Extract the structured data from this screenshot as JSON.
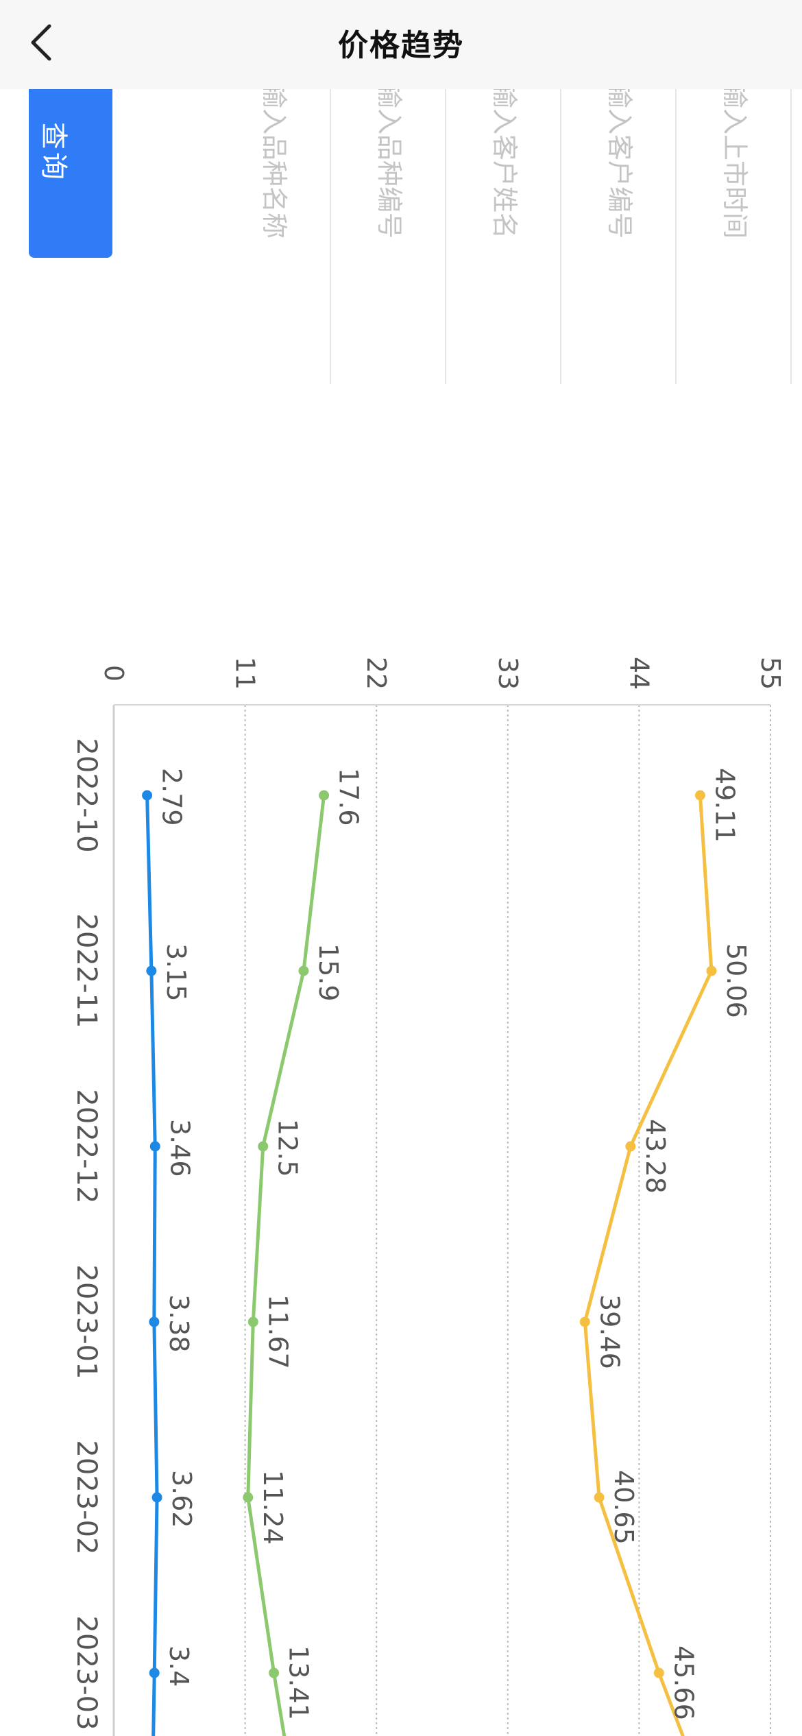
{
  "header": {
    "title": "价格趋势",
    "back_icon": "chevron-left-icon"
  },
  "filters": {
    "query_button_label": "查询",
    "fields": [
      {
        "placeholder": "输入上市时间"
      },
      {
        "placeholder": "输入客户编号"
      },
      {
        "placeholder": "输入客户姓名"
      },
      {
        "placeholder": "输入品种编号"
      },
      {
        "placeholder": "输入品种名称"
      }
    ]
  },
  "colors": {
    "primary": "#2f7cf6",
    "series_blue": "#1e88e5",
    "series_green": "#8cc96e",
    "series_yellow": "#f5c042"
  },
  "chart_data": {
    "type": "line",
    "orientation": "rotated 90° clockwise",
    "x": [
      "2022-10",
      "2022-11",
      "2022-12",
      "2023-01",
      "2023-02",
      "2023-03"
    ],
    "y_ticks": [
      0,
      11,
      22,
      33,
      44,
      55
    ],
    "ylim": [
      0,
      55
    ],
    "grid": true,
    "series": [
      {
        "color": "#f5c042",
        "values": [
          49.11,
          50.06,
          43.28,
          39.46,
          40.65,
          45.66
        ]
      },
      {
        "color": "#8cc96e",
        "values": [
          17.6,
          15.9,
          12.5,
          11.67,
          11.24,
          13.41
        ]
      },
      {
        "color": "#1e88e5",
        "values": [
          2.79,
          3.15,
          3.46,
          3.38,
          3.62,
          3.4
        ]
      }
    ]
  }
}
